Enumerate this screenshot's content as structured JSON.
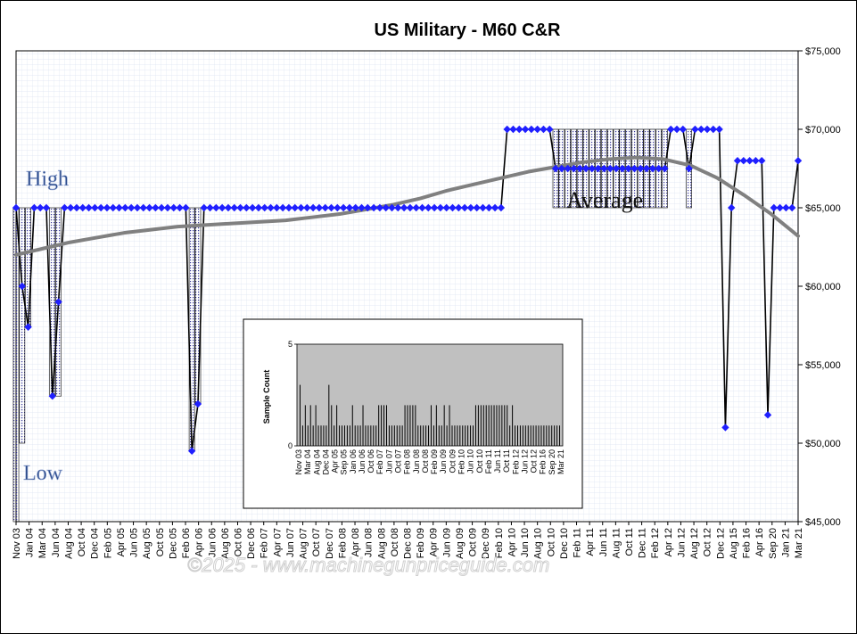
{
  "chart_data": [
    {
      "type": "line",
      "title": "US Military - M60 C&R",
      "y_unit_prefix": "$",
      "ylim": [
        45000,
        75000
      ],
      "y_ticks": [
        "$45,000",
        "$50,000",
        "$55,000",
        "$60,000",
        "$65,000",
        "$70,000",
        "$75,000"
      ],
      "y_axis_side": "right",
      "x_tick_labels": [
        "Nov 03",
        "Jan 04",
        "Mar 04",
        "Jun 04",
        "Aug 04",
        "Oct 04",
        "Dec 04",
        "Feb 05",
        "Apr 05",
        "Jun 05",
        "Aug 05",
        "Oct 05",
        "Dec 05",
        "Feb 06",
        "Apr 06",
        "Jun 06",
        "Aug 06",
        "Oct 06",
        "Dec 06",
        "Feb 07",
        "Apr 07",
        "Jun 07",
        "Aug 07",
        "Oct 07",
        "Dec 07",
        "Feb 08",
        "Apr 08",
        "Jun 08",
        "Aug 08",
        "Oct 08",
        "Dec 08",
        "Feb 09",
        "Apr 09",
        "Jun 09",
        "Aug 09",
        "Oct 09",
        "Dec 09",
        "Feb 10",
        "Apr 10",
        "Jun 10",
        "Aug 10",
        "Oct 10",
        "Dec 10",
        "Feb 11",
        "Apr 11",
        "Jun 11",
        "Aug 11",
        "Oct 11",
        "Dec 11",
        "Feb 12",
        "Apr 12",
        "Jun 12",
        "Aug 12",
        "Oct 12",
        "Dec 12",
        "Aug 15",
        "Feb 16",
        "Apr 16",
        "Sep 20",
        "Jan 21",
        "Mar 21"
      ],
      "grid": true,
      "series": [
        {
          "kind": "points",
          "color": "#1f1fff",
          "values": [
            65000,
            60000,
            57400,
            65000,
            65000,
            65000,
            53000,
            59000,
            65000,
            65000,
            65000,
            65000,
            65000,
            65000,
            65000,
            65000,
            65000,
            65000,
            65000,
            65000,
            65000,
            65000,
            65000,
            65000,
            65000,
            65000,
            65000,
            65000,
            65000,
            49500,
            52500,
            65000,
            65000,
            65000,
            65000,
            65000,
            65000,
            65000,
            65000,
            65000,
            65000,
            65000,
            65000,
            65000,
            65000,
            65000,
            65000,
            65000,
            65000,
            65000,
            65000,
            65000,
            65000,
            65000,
            65000,
            65000,
            65000,
            65000,
            65000,
            65000,
            65000,
            65000,
            65000,
            65000,
            65000,
            65000,
            65000,
            65000,
            65000,
            65000,
            65000,
            65000,
            65000,
            65000,
            65000,
            65000,
            65000,
            65000,
            65000,
            65000,
            65000,
            70000,
            70000,
            70000,
            70000,
            70000,
            70000,
            70000,
            70000,
            67500,
            67500,
            67500,
            67500,
            67500,
            67500,
            67500,
            67500,
            67500,
            67500,
            67500,
            67500,
            67500,
            67500,
            67500,
            67500,
            67500,
            67500,
            67500,
            70000,
            70000,
            70000,
            67500,
            70000,
            70000,
            70000,
            70000,
            70000,
            51000,
            65000,
            68000,
            68000,
            68000,
            68000,
            68000,
            51800,
            65000,
            65000,
            65000,
            65000,
            68000
          ]
        },
        {
          "kind": "high_low",
          "color": "#000000",
          "high": [
            65000,
            65000,
            65000,
            65000,
            65000,
            65000,
            65000,
            65000,
            65000,
            65000,
            65000,
            65000,
            65000,
            65000,
            65000,
            65000,
            65000,
            65000,
            65000,
            65000,
            65000,
            65000,
            65000,
            65000,
            65000,
            65000,
            65000,
            65000,
            65000,
            65000,
            65000,
            65000,
            65000,
            65000,
            65000,
            65000,
            65000,
            65000,
            65000,
            65000,
            65000,
            65000,
            65000,
            65000,
            65000,
            65000,
            65000,
            65000,
            65000,
            65000,
            65000,
            65000,
            65000,
            65000,
            65000,
            65000,
            65000,
            65000,
            65000,
            65000,
            65000,
            65000,
            65000,
            65000,
            65000,
            65000,
            65000,
            65000,
            65000,
            65000,
            65000,
            65000,
            65000,
            65000,
            65000,
            65000,
            65000,
            65000,
            65000,
            65000,
            65000,
            70000,
            70000,
            70000,
            70000,
            70000,
            70000,
            70000,
            70000,
            70000,
            70000,
            70000,
            70000,
            70000,
            70000,
            70000,
            70000,
            70000,
            70000,
            70000,
            70000,
            70000,
            70000,
            70000,
            70000,
            70000,
            70000,
            70000,
            70000,
            70000,
            70000,
            70000,
            70000,
            70000,
            70000,
            70000,
            70000,
            51000,
            65000,
            68000,
            68000,
            68000,
            68000,
            68000,
            51800,
            65000,
            65000,
            65000,
            65000,
            68000
          ],
          "low": [
            45000,
            50000,
            57400,
            65000,
            65000,
            65000,
            53000,
            53000,
            65000,
            65000,
            65000,
            65000,
            65000,
            65000,
            65000,
            65000,
            65000,
            65000,
            65000,
            65000,
            65000,
            65000,
            65000,
            65000,
            65000,
            65000,
            65000,
            65000,
            65000,
            49500,
            52500,
            65000,
            65000,
            65000,
            65000,
            65000,
            65000,
            65000,
            65000,
            65000,
            65000,
            65000,
            65000,
            65000,
            65000,
            65000,
            65000,
            65000,
            65000,
            65000,
            65000,
            65000,
            65000,
            65000,
            65000,
            65000,
            65000,
            65000,
            65000,
            65000,
            65000,
            65000,
            65000,
            65000,
            65000,
            65000,
            65000,
            65000,
            65000,
            65000,
            65000,
            65000,
            65000,
            65000,
            65000,
            65000,
            65000,
            65000,
            65000,
            65000,
            65000,
            70000,
            70000,
            70000,
            70000,
            70000,
            70000,
            70000,
            70000,
            65000,
            65000,
            65000,
            65000,
            65000,
            65000,
            65000,
            65000,
            65000,
            65000,
            65000,
            65000,
            65000,
            65000,
            65000,
            65000,
            65000,
            65000,
            65000,
            70000,
            70000,
            70000,
            65000,
            70000,
            70000,
            70000,
            70000,
            70000,
            51000,
            65000,
            68000,
            68000,
            68000,
            68000,
            68000,
            51800,
            65000,
            65000,
            65000,
            65000,
            68000
          ]
        },
        {
          "kind": "trend",
          "color": "#808080",
          "values": [
            62000,
            62400,
            62800,
            63100,
            63400,
            63600,
            63800,
            63900,
            64000,
            64100,
            64200,
            64400,
            64600,
            64900,
            65200,
            65600,
            66100,
            66500,
            66900,
            67300,
            67600,
            67900,
            68100,
            68200,
            68100,
            67700,
            66900,
            65800,
            64600,
            63200
          ]
        }
      ],
      "annotations": [
        "High",
        "Low",
        "Average"
      ]
    },
    {
      "type": "bar",
      "ylabel": "Sample Count",
      "ylim": [
        0,
        5
      ],
      "y_ticks": [
        "0",
        "5"
      ],
      "x_tick_labels": [
        "Nov 03",
        "Mar 04",
        "Aug 04",
        "Dec 04",
        "Apr 05",
        "Sep 05",
        "Jan 06",
        "Jun 06",
        "Oct 06",
        "Feb 07",
        "Jun 07",
        "Oct 07",
        "Feb 08",
        "Jun 08",
        "Oct 08",
        "Feb 09",
        "Jun 09",
        "Oct 09",
        "Feb 10",
        "Jun 10",
        "Oct 10",
        "Feb 11",
        "Jun 11",
        "Oct 11",
        "Feb 12",
        "Jun 12",
        "Oct 12",
        "Feb 16",
        "Sep 20",
        "Mar 21"
      ],
      "values": [
        3,
        1,
        2,
        1,
        2,
        1,
        2,
        1,
        1,
        1,
        1,
        3,
        2,
        1,
        2,
        1,
        1,
        1,
        1,
        1,
        2,
        1,
        1,
        1,
        2,
        1,
        1,
        1,
        1,
        1,
        2,
        2,
        2,
        2,
        1,
        1,
        1,
        1,
        1,
        1,
        2,
        2,
        2,
        2,
        2,
        1,
        1,
        1,
        1,
        1,
        2,
        1,
        2,
        1,
        1,
        2,
        1,
        2,
        1,
        1,
        1,
        1,
        1,
        1,
        1,
        1,
        1,
        2,
        2,
        2,
        2,
        2,
        2,
        2,
        2,
        2,
        2,
        2,
        2,
        2,
        1,
        2,
        1,
        1,
        1,
        1,
        1,
        1,
        1,
        1,
        1,
        1,
        1,
        1,
        1,
        1,
        1,
        1,
        1,
        1
      ]
    }
  ],
  "watermark": "©2025 - www.machinegunpriceguide.com"
}
